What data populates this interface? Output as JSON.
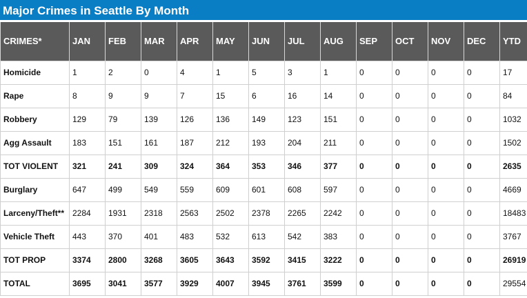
{
  "title": "Major Crimes in Seattle By Month",
  "colors": {
    "title_bg": "#0a7ec4",
    "header_bg": "#5a5a5a"
  },
  "columns": [
    "CRIMES*",
    "JAN",
    "FEB",
    "MAR",
    "APR",
    "MAY",
    "JUN",
    "JUL",
    "AUG",
    "SEP",
    "OCT",
    "NOV",
    "DEC",
    "YTD"
  ],
  "rows": [
    {
      "bold": false,
      "cells": [
        "Homicide",
        "1",
        "2",
        "0",
        "4",
        "1",
        "5",
        "3",
        "1",
        "0",
        "0",
        "0",
        "0",
        "17"
      ]
    },
    {
      "bold": false,
      "cells": [
        "Rape",
        "8",
        "9",
        "9",
        "7",
        "15",
        "6",
        "16",
        "14",
        "0",
        "0",
        "0",
        "0",
        "84"
      ]
    },
    {
      "bold": false,
      "cells": [
        "Robbery",
        "129",
        "79",
        "139",
        "126",
        "136",
        "149",
        "123",
        "151",
        "0",
        "0",
        "0",
        "0",
        "1032"
      ]
    },
    {
      "bold": false,
      "cells": [
        "Agg Assault",
        "183",
        "151",
        "161",
        "187",
        "212",
        "193",
        "204",
        "211",
        "0",
        "0",
        "0",
        "0",
        "1502"
      ]
    },
    {
      "bold": true,
      "cells": [
        "TOT VIOLENT",
        "321",
        "241",
        "309",
        "324",
        "364",
        "353",
        "346",
        "377",
        "0",
        "0",
        "0",
        "0",
        "2635"
      ]
    },
    {
      "bold": false,
      "cells": [
        "Burglary",
        "647",
        "499",
        "549",
        "559",
        "609",
        "601",
        "608",
        "597",
        "0",
        "0",
        "0",
        "0",
        "4669"
      ]
    },
    {
      "bold": false,
      "cells": [
        "Larceny/Theft**",
        "2284",
        "1931",
        "2318",
        "2563",
        "2502",
        "2378",
        "2265",
        "2242",
        "0",
        "0",
        "0",
        "0",
        "18483"
      ]
    },
    {
      "bold": false,
      "cells": [
        "Vehicle Theft",
        "443",
        "370",
        "401",
        "483",
        "532",
        "613",
        "542",
        "383",
        "0",
        "0",
        "0",
        "0",
        "3767"
      ]
    },
    {
      "bold": true,
      "cells": [
        "TOT PROP",
        "3374",
        "2800",
        "3268",
        "3605",
        "3643",
        "3592",
        "3415",
        "3222",
        "0",
        "0",
        "0",
        "0",
        "26919"
      ]
    },
    {
      "bold": true,
      "cells": [
        "TOTAL",
        "3695",
        "3041",
        "3577",
        "3929",
        "4007",
        "3945",
        "3761",
        "3599",
        "0",
        "0",
        "0",
        "0",
        "29554"
      ],
      "last_plain": true
    }
  ]
}
